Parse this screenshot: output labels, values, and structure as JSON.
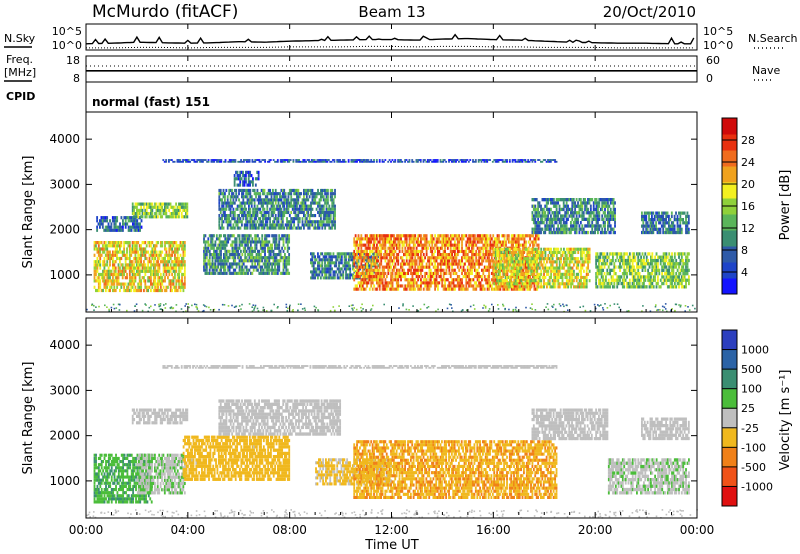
{
  "header": {
    "title": "McMurdo (fitACF)",
    "beam": "Beam 13",
    "date": "20/Oct/2010"
  },
  "summary_panels": {
    "nsky_label": "N.Sky",
    "nsearch_label": "N.Search",
    "freq_label_1": "Freq.",
    "freq_label_2": "[MHz]",
    "nave_label": "Nave",
    "cpid_label": "CPID",
    "cpid_value": "normal (fast) 151",
    "noise_left_ticks": [
      "10^5",
      "10^0"
    ],
    "noise_right_ticks": [
      "10^5",
      "10^0"
    ],
    "freq_left_ticks": [
      "18",
      "8"
    ],
    "nave_right_ticks": [
      "60",
      "0"
    ]
  },
  "power_panel": {
    "ylabel": "Slant Range [km]",
    "yticks": [
      "1000",
      "2000",
      "3000",
      "4000"
    ],
    "scale_label": "Power [dB]",
    "scale_ticks": [
      "4",
      "8",
      "12",
      "16",
      "20",
      "24",
      "28"
    ],
    "scale_colors": [
      "#1414ff",
      "#1e44c8",
      "#2e5aa8",
      "#3a8e72",
      "#5ab55a",
      "#8fd13a",
      "#f3f020",
      "#f0a21e",
      "#f06c1e",
      "#e8300f",
      "#d00a0a"
    ]
  },
  "velocity_panel": {
    "ylabel": "Slant Range [km]",
    "yticks": [
      "1000",
      "2000",
      "3000",
      "4000"
    ],
    "scale_label": "Velocity [m s⁻¹]",
    "scale_ticks": [
      "1000",
      "500",
      "100",
      "25",
      "-25",
      "-100",
      "-500",
      "-1000"
    ],
    "scale_colors": [
      "#2c3fbe",
      "#2b63a6",
      "#3a8e72",
      "#4bbd3a",
      "#bfbfbf",
      "#f0b81e",
      "#f08018",
      "#f05218",
      "#e01010"
    ]
  },
  "x_axis": {
    "ticks": [
      "00:00",
      "04:00",
      "08:00",
      "12:00",
      "16:00",
      "20:00",
      "00:00"
    ],
    "label": "Time UT"
  },
  "chart_data": [
    {
      "type": "line",
      "name": "noise",
      "xlim_hours": [
        0,
        24
      ],
      "series": [
        {
          "name": "N.Sky",
          "values": [
            1.2,
            1.3,
            1.5,
            1.4,
            1.3,
            1.4,
            1.6,
            1.5,
            1.7,
            1.8,
            1.9,
            2.0,
            2.0,
            1.9,
            2.1,
            2.2,
            2.0,
            1.9,
            1.7,
            1.5,
            1.4,
            1.3,
            1.3,
            1.2,
            1.2
          ]
        },
        {
          "name": "N.Search",
          "values": [
            0.4,
            0.4,
            0.5,
            0.5,
            0.4,
            0.5,
            0.5,
            0.5,
            0.6,
            0.6,
            0.6,
            0.7,
            0.7,
            0.6,
            0.7,
            0.7,
            0.6,
            0.6,
            0.5,
            0.5,
            0.5,
            0.4,
            0.4,
            0.4,
            0.4
          ]
        }
      ]
    },
    {
      "type": "line",
      "name": "frequency_nave",
      "xlim_hours": [
        0,
        24
      ],
      "series": [
        {
          "name": "Freq.",
          "unit": "MHz",
          "values": [
            12.3,
            12.3,
            12.3,
            12.3,
            12.3,
            12.3,
            12.3,
            12.3,
            12.3,
            12.3,
            12.3,
            12.3,
            12.3,
            12.3,
            12.3,
            12.3,
            12.3,
            12.3,
            12.3,
            12.3,
            12.3,
            12.3,
            12.3,
            12.3,
            12.3
          ]
        },
        {
          "name": "Nave",
          "values": [
            37,
            37,
            37,
            37,
            37,
            37,
            37,
            37,
            37,
            37,
            37,
            37,
            37,
            37,
            37,
            37,
            37,
            37,
            37,
            37,
            37,
            37,
            37,
            37,
            37
          ]
        }
      ]
    },
    {
      "type": "heatmap",
      "name": "power",
      "x_label": "Time UT",
      "y_label": "Slant Range [km]",
      "xlim_hours": [
        0,
        24
      ],
      "ylim_km": [
        180,
        4600
      ],
      "value_label": "Power [dB]",
      "value_range": [
        0,
        30
      ],
      "regions": [
        {
          "t0": 0.3,
          "t1": 3.9,
          "r0": 620,
          "r1": 1750,
          "value": 18
        },
        {
          "t0": 0.4,
          "t1": 2.2,
          "r0": 1950,
          "r1": 2300,
          "value": 7
        },
        {
          "t0": 1.8,
          "t1": 4.0,
          "r0": 2250,
          "r1": 2600,
          "value": 14
        },
        {
          "t0": 4.6,
          "t1": 8.0,
          "r0": 1000,
          "r1": 1900,
          "value": 10
        },
        {
          "t0": 5.2,
          "t1": 9.8,
          "r0": 2000,
          "r1": 2900,
          "value": 9
        },
        {
          "t0": 5.8,
          "t1": 6.8,
          "r0": 2950,
          "r1": 3300,
          "value": 6
        },
        {
          "t0": 8.8,
          "t1": 11.5,
          "r0": 900,
          "r1": 1500,
          "value": 9
        },
        {
          "t0": 10.5,
          "t1": 17.8,
          "r0": 650,
          "r1": 1900,
          "value": 22
        },
        {
          "t0": 16.0,
          "t1": 19.8,
          "r0": 700,
          "r1": 1600,
          "value": 17
        },
        {
          "t0": 17.5,
          "t1": 20.8,
          "r0": 1900,
          "r1": 2700,
          "value": 9
        },
        {
          "t0": 20.0,
          "t1": 23.7,
          "r0": 700,
          "r1": 1500,
          "value": 14
        },
        {
          "t0": 21.8,
          "t1": 23.7,
          "r0": 1900,
          "r1": 2400,
          "value": 8
        },
        {
          "t0": 3.0,
          "t1": 18.5,
          "r0": 3480,
          "r1": 3560,
          "value": 5
        }
      ]
    },
    {
      "type": "heatmap",
      "name": "velocity",
      "x_label": "Time UT",
      "y_label": "Slant Range [km]",
      "xlim_hours": [
        0,
        24
      ],
      "ylim_km": [
        180,
        4600
      ],
      "value_label": "Velocity [m s-1]",
      "value_range": [
        -1000,
        1000
      ],
      "regions": [
        {
          "t0": 0.3,
          "t1": 2.6,
          "r0": 500,
          "r1": 1600,
          "value": 300
        },
        {
          "t0": 2.0,
          "t1": 3.9,
          "r0": 700,
          "r1": 1600,
          "value": 80
        },
        {
          "t0": 1.8,
          "t1": 4.0,
          "r0": 2250,
          "r1": 2600,
          "value": 0
        },
        {
          "t0": 3.8,
          "t1": 8.0,
          "r0": 1000,
          "r1": 2000,
          "value": -200
        },
        {
          "t0": 5.2,
          "t1": 10.0,
          "r0": 2000,
          "r1": 2800,
          "value": 0
        },
        {
          "t0": 9.0,
          "t1": 12.0,
          "r0": 900,
          "r1": 1500,
          "value": -150
        },
        {
          "t0": 10.5,
          "t1": 18.5,
          "r0": 600,
          "r1": 1900,
          "value": -300
        },
        {
          "t0": 17.5,
          "t1": 20.5,
          "r0": 1900,
          "r1": 2600,
          "value": 0
        },
        {
          "t0": 20.5,
          "t1": 23.7,
          "r0": 700,
          "r1": 1500,
          "value": 60
        },
        {
          "t0": 21.8,
          "t1": 23.7,
          "r0": 1900,
          "r1": 2400,
          "value": 0
        },
        {
          "t0": 3.0,
          "t1": 18.5,
          "r0": 3480,
          "r1": 3560,
          "value": 0
        }
      ]
    }
  ]
}
